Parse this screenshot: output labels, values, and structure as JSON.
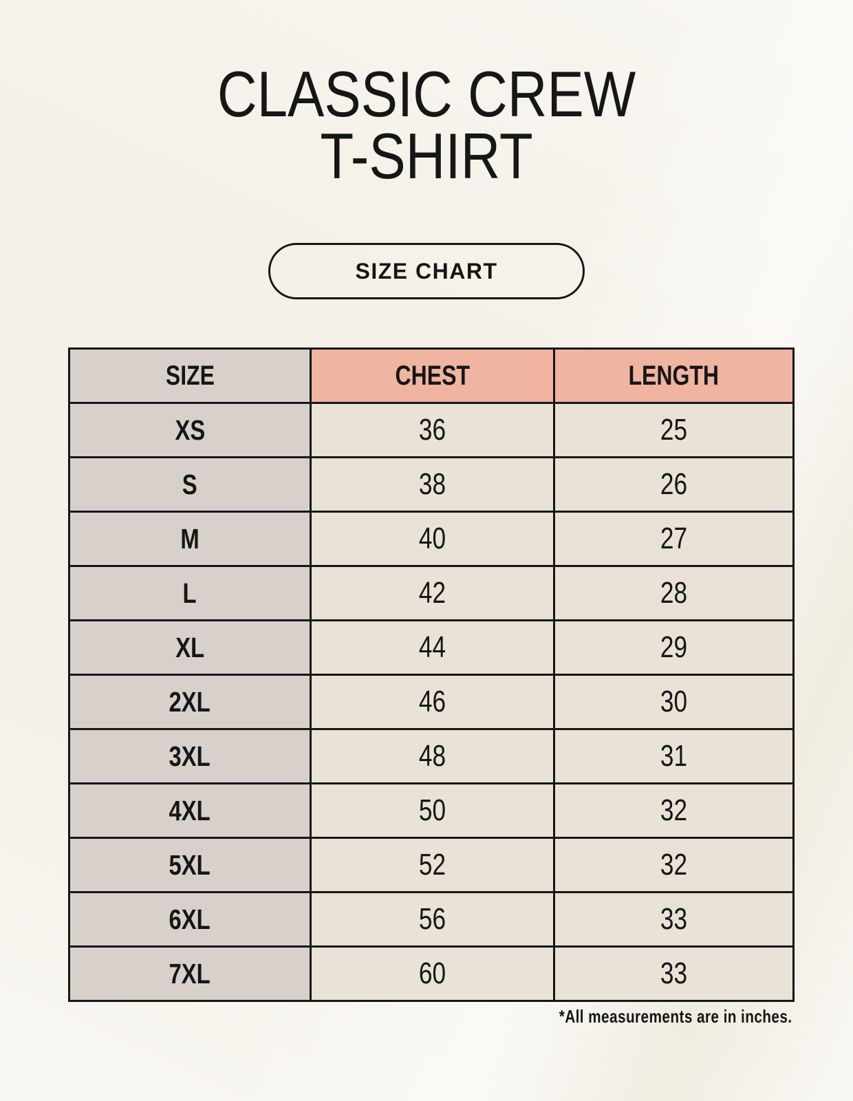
{
  "header": {
    "title_line1": "CLASSIC CREW",
    "title_line2": "T-SHIRT",
    "badge_label": "SIZE CHART"
  },
  "footer": {
    "note": "*All measurements are in inches."
  },
  "colors": {
    "background": "#f4f1e8",
    "accent_header": "#efb5a1",
    "size_column": "#d8d1cb",
    "value_cell": "#e9e2d7",
    "ink": "#161616"
  },
  "chart_data": {
    "type": "table",
    "title": "CLASSIC CREW T-SHIRT — SIZE CHART",
    "columns": [
      "SIZE",
      "CHEST",
      "LENGTH"
    ],
    "rows": [
      [
        "XS",
        "36",
        "25"
      ],
      [
        "S",
        "38",
        "26"
      ],
      [
        "M",
        "40",
        "27"
      ],
      [
        "L",
        "42",
        "28"
      ],
      [
        "XL",
        "44",
        "29"
      ],
      [
        "2XL",
        "46",
        "30"
      ],
      [
        "3XL",
        "48",
        "31"
      ],
      [
        "4XL",
        "50",
        "32"
      ],
      [
        "5XL",
        "52",
        "32"
      ],
      [
        "6XL",
        "56",
        "33"
      ],
      [
        "7XL",
        "60",
        "33"
      ]
    ],
    "units_note": "*All measurements are in inches."
  }
}
